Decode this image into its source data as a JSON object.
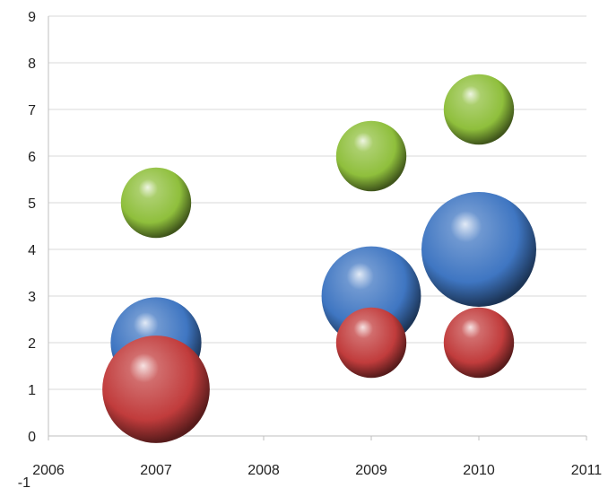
{
  "chart_data": {
    "type": "bubble",
    "title": "",
    "xlabel": "",
    "ylabel": "",
    "xlim": [
      2006,
      2011
    ],
    "ylim": [
      -1,
      9
    ],
    "x_ticks": [
      "2006",
      "2007",
      "2008",
      "2009",
      "2010",
      "2011"
    ],
    "y_ticks": [
      "-1",
      "0",
      "1",
      "2",
      "3",
      "4",
      "5",
      "6",
      "7",
      "8",
      "9"
    ],
    "grid": true,
    "legend": "none",
    "series": [
      {
        "color": "#3f76c2",
        "points": [
          {
            "x": 2007,
            "y": 2,
            "size": 5
          },
          {
            "x": 2009,
            "y": 3,
            "size": 6
          },
          {
            "x": 2010,
            "y": 4,
            "size": 8
          }
        ]
      },
      {
        "color": "#c13c3c",
        "points": [
          {
            "x": 2007,
            "y": 1,
            "size": 7
          },
          {
            "x": 2009,
            "y": 2,
            "size": 3
          },
          {
            "x": 2010,
            "y": 2,
            "size": 3
          }
        ]
      },
      {
        "color": "#8fbf3c",
        "points": [
          {
            "x": 2007,
            "y": 5,
            "size": 3
          },
          {
            "x": 2009,
            "y": 6,
            "size": 3
          },
          {
            "x": 2010,
            "y": 7,
            "size": 3
          }
        ]
      }
    ]
  }
}
